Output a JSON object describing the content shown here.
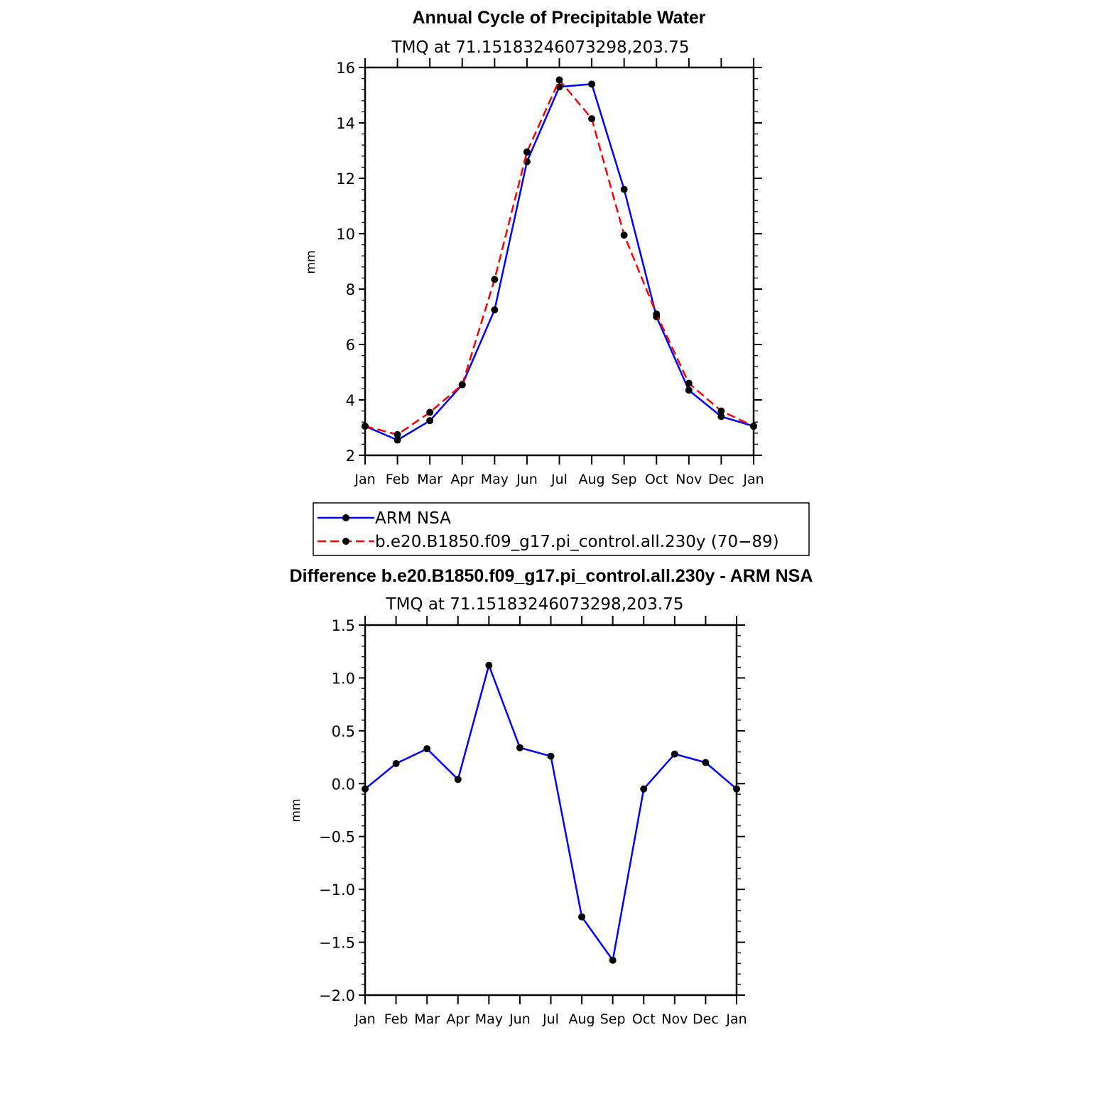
{
  "chart_data": [
    {
      "type": "line",
      "title": "Annual Cycle of Precipitable Water",
      "subtitle": "TMQ at 71.15183246073298,203.75",
      "ylabel": "mm",
      "xlabel": "",
      "ylim": [
        2,
        16
      ],
      "yticks": [
        "2",
        "4",
        "6",
        "8",
        "10",
        "12",
        "14",
        "16"
      ],
      "categories": [
        "Jan",
        "Feb",
        "Mar",
        "Apr",
        "May",
        "Jun",
        "Jul",
        "Aug",
        "Sep",
        "Oct",
        "Nov",
        "Dec",
        "Jan"
      ],
      "series": [
        {
          "name": "ARM NSA",
          "color": "#0000ff",
          "dash": "solid",
          "values": [
            3.05,
            2.55,
            3.25,
            4.55,
            7.25,
            12.6,
            15.3,
            15.4,
            11.6,
            7.0,
            4.35,
            3.4,
            3.05
          ]
        },
        {
          "name": "b.e20.B1850.f09_g17.pi_control.all.230y (70−89)",
          "color": "#ff0000",
          "dash": "dashed",
          "values": [
            3.05,
            2.75,
            3.55,
            4.55,
            8.35,
            12.95,
            15.55,
            14.15,
            9.95,
            7.1,
            4.6,
            3.6,
            3.05
          ]
        }
      ],
      "legend": "below"
    },
    {
      "type": "line",
      "title": "Difference b.e20.B1850.f09_g17.pi_control.all.230y - ARM NSA",
      "subtitle": "TMQ at 71.15183246073298,203.75",
      "ylabel": "mm",
      "xlabel": "",
      "ylim": [
        -2.0,
        1.5
      ],
      "yticks": [
        "1.5",
        "1.0",
        "0.5",
        "0.0",
        "−0.5",
        "−1.0",
        "−1.5",
        "−2.0"
      ],
      "ytick_values": [
        1.5,
        1.0,
        0.5,
        0.0,
        -0.5,
        -1.0,
        -1.5,
        -2.0
      ],
      "categories": [
        "Jan",
        "Feb",
        "Mar",
        "Apr",
        "May",
        "Jun",
        "Jul",
        "Aug",
        "Sep",
        "Oct",
        "Nov",
        "Dec",
        "Jan"
      ],
      "series": [
        {
          "color": "#0000ff",
          "dash": "solid",
          "values": [
            -0.05,
            0.19,
            0.33,
            0.04,
            1.12,
            0.34,
            0.26,
            -1.26,
            -1.67,
            -0.05,
            0.28,
            0.2,
            -0.05
          ]
        }
      ]
    }
  ]
}
